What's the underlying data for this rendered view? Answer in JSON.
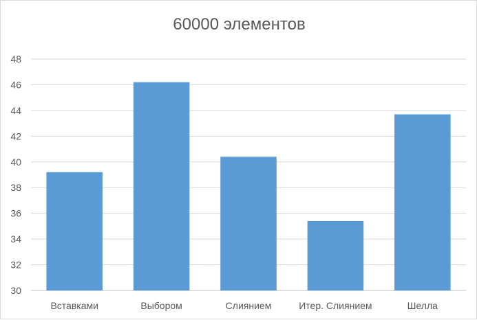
{
  "chart_data": {
    "type": "bar",
    "title": "60000 элементов",
    "xlabel": "",
    "ylabel": "",
    "categories": [
      "Вставками",
      "Выбором",
      "Слиянием",
      "Итер. Слиянием",
      "Шелла"
    ],
    "values": [
      39.2,
      46.2,
      40.4,
      35.4,
      43.7
    ],
    "ylim": [
      30,
      48
    ],
    "yticks": [
      30,
      32,
      34,
      36,
      38,
      40,
      42,
      44,
      46,
      48
    ],
    "grid": true,
    "legend": "none",
    "bar_color": "#5b9bd5",
    "grid_color": "#d9d9d9",
    "text_color": "#595959"
  }
}
